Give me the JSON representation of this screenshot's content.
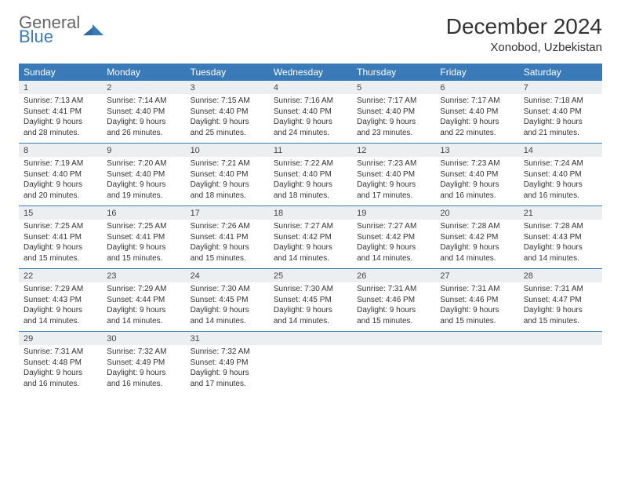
{
  "brand": {
    "general": "General",
    "blue": "Blue"
  },
  "title": "December 2024",
  "location": "Xonobod, Uzbekistan",
  "colors": {
    "header_bg": "#3a7ab8",
    "header_text": "#ffffff",
    "daynum_bg": "#eceff1",
    "rule": "#3a7ab8",
    "page_bg": "#ffffff"
  },
  "fonts": {
    "title_size": 28,
    "dow_size": 12,
    "daynum_size": 11,
    "detail_size": 10
  },
  "dow": [
    "Sunday",
    "Monday",
    "Tuesday",
    "Wednesday",
    "Thursday",
    "Friday",
    "Saturday"
  ],
  "weeks": [
    [
      {
        "n": "1",
        "sr": "Sunrise: 7:13 AM",
        "ss": "Sunset: 4:41 PM",
        "dl": "Daylight: 9 hours and 28 minutes."
      },
      {
        "n": "2",
        "sr": "Sunrise: 7:14 AM",
        "ss": "Sunset: 4:40 PM",
        "dl": "Daylight: 9 hours and 26 minutes."
      },
      {
        "n": "3",
        "sr": "Sunrise: 7:15 AM",
        "ss": "Sunset: 4:40 PM",
        "dl": "Daylight: 9 hours and 25 minutes."
      },
      {
        "n": "4",
        "sr": "Sunrise: 7:16 AM",
        "ss": "Sunset: 4:40 PM",
        "dl": "Daylight: 9 hours and 24 minutes."
      },
      {
        "n": "5",
        "sr": "Sunrise: 7:17 AM",
        "ss": "Sunset: 4:40 PM",
        "dl": "Daylight: 9 hours and 23 minutes."
      },
      {
        "n": "6",
        "sr": "Sunrise: 7:17 AM",
        "ss": "Sunset: 4:40 PM",
        "dl": "Daylight: 9 hours and 22 minutes."
      },
      {
        "n": "7",
        "sr": "Sunrise: 7:18 AM",
        "ss": "Sunset: 4:40 PM",
        "dl": "Daylight: 9 hours and 21 minutes."
      }
    ],
    [
      {
        "n": "8",
        "sr": "Sunrise: 7:19 AM",
        "ss": "Sunset: 4:40 PM",
        "dl": "Daylight: 9 hours and 20 minutes."
      },
      {
        "n": "9",
        "sr": "Sunrise: 7:20 AM",
        "ss": "Sunset: 4:40 PM",
        "dl": "Daylight: 9 hours and 19 minutes."
      },
      {
        "n": "10",
        "sr": "Sunrise: 7:21 AM",
        "ss": "Sunset: 4:40 PM",
        "dl": "Daylight: 9 hours and 18 minutes."
      },
      {
        "n": "11",
        "sr": "Sunrise: 7:22 AM",
        "ss": "Sunset: 4:40 PM",
        "dl": "Daylight: 9 hours and 18 minutes."
      },
      {
        "n": "12",
        "sr": "Sunrise: 7:23 AM",
        "ss": "Sunset: 4:40 PM",
        "dl": "Daylight: 9 hours and 17 minutes."
      },
      {
        "n": "13",
        "sr": "Sunrise: 7:23 AM",
        "ss": "Sunset: 4:40 PM",
        "dl": "Daylight: 9 hours and 16 minutes."
      },
      {
        "n": "14",
        "sr": "Sunrise: 7:24 AM",
        "ss": "Sunset: 4:40 PM",
        "dl": "Daylight: 9 hours and 16 minutes."
      }
    ],
    [
      {
        "n": "15",
        "sr": "Sunrise: 7:25 AM",
        "ss": "Sunset: 4:41 PM",
        "dl": "Daylight: 9 hours and 15 minutes."
      },
      {
        "n": "16",
        "sr": "Sunrise: 7:25 AM",
        "ss": "Sunset: 4:41 PM",
        "dl": "Daylight: 9 hours and 15 minutes."
      },
      {
        "n": "17",
        "sr": "Sunrise: 7:26 AM",
        "ss": "Sunset: 4:41 PM",
        "dl": "Daylight: 9 hours and 15 minutes."
      },
      {
        "n": "18",
        "sr": "Sunrise: 7:27 AM",
        "ss": "Sunset: 4:42 PM",
        "dl": "Daylight: 9 hours and 14 minutes."
      },
      {
        "n": "19",
        "sr": "Sunrise: 7:27 AM",
        "ss": "Sunset: 4:42 PM",
        "dl": "Daylight: 9 hours and 14 minutes."
      },
      {
        "n": "20",
        "sr": "Sunrise: 7:28 AM",
        "ss": "Sunset: 4:42 PM",
        "dl": "Daylight: 9 hours and 14 minutes."
      },
      {
        "n": "21",
        "sr": "Sunrise: 7:28 AM",
        "ss": "Sunset: 4:43 PM",
        "dl": "Daylight: 9 hours and 14 minutes."
      }
    ],
    [
      {
        "n": "22",
        "sr": "Sunrise: 7:29 AM",
        "ss": "Sunset: 4:43 PM",
        "dl": "Daylight: 9 hours and 14 minutes."
      },
      {
        "n": "23",
        "sr": "Sunrise: 7:29 AM",
        "ss": "Sunset: 4:44 PM",
        "dl": "Daylight: 9 hours and 14 minutes."
      },
      {
        "n": "24",
        "sr": "Sunrise: 7:30 AM",
        "ss": "Sunset: 4:45 PM",
        "dl": "Daylight: 9 hours and 14 minutes."
      },
      {
        "n": "25",
        "sr": "Sunrise: 7:30 AM",
        "ss": "Sunset: 4:45 PM",
        "dl": "Daylight: 9 hours and 14 minutes."
      },
      {
        "n": "26",
        "sr": "Sunrise: 7:31 AM",
        "ss": "Sunset: 4:46 PM",
        "dl": "Daylight: 9 hours and 15 minutes."
      },
      {
        "n": "27",
        "sr": "Sunrise: 7:31 AM",
        "ss": "Sunset: 4:46 PM",
        "dl": "Daylight: 9 hours and 15 minutes."
      },
      {
        "n": "28",
        "sr": "Sunrise: 7:31 AM",
        "ss": "Sunset: 4:47 PM",
        "dl": "Daylight: 9 hours and 15 minutes."
      }
    ],
    [
      {
        "n": "29",
        "sr": "Sunrise: 7:31 AM",
        "ss": "Sunset: 4:48 PM",
        "dl": "Daylight: 9 hours and 16 minutes."
      },
      {
        "n": "30",
        "sr": "Sunrise: 7:32 AM",
        "ss": "Sunset: 4:49 PM",
        "dl": "Daylight: 9 hours and 16 minutes."
      },
      {
        "n": "31",
        "sr": "Sunrise: 7:32 AM",
        "ss": "Sunset: 4:49 PM",
        "dl": "Daylight: 9 hours and 17 minutes."
      },
      null,
      null,
      null,
      null
    ]
  ]
}
